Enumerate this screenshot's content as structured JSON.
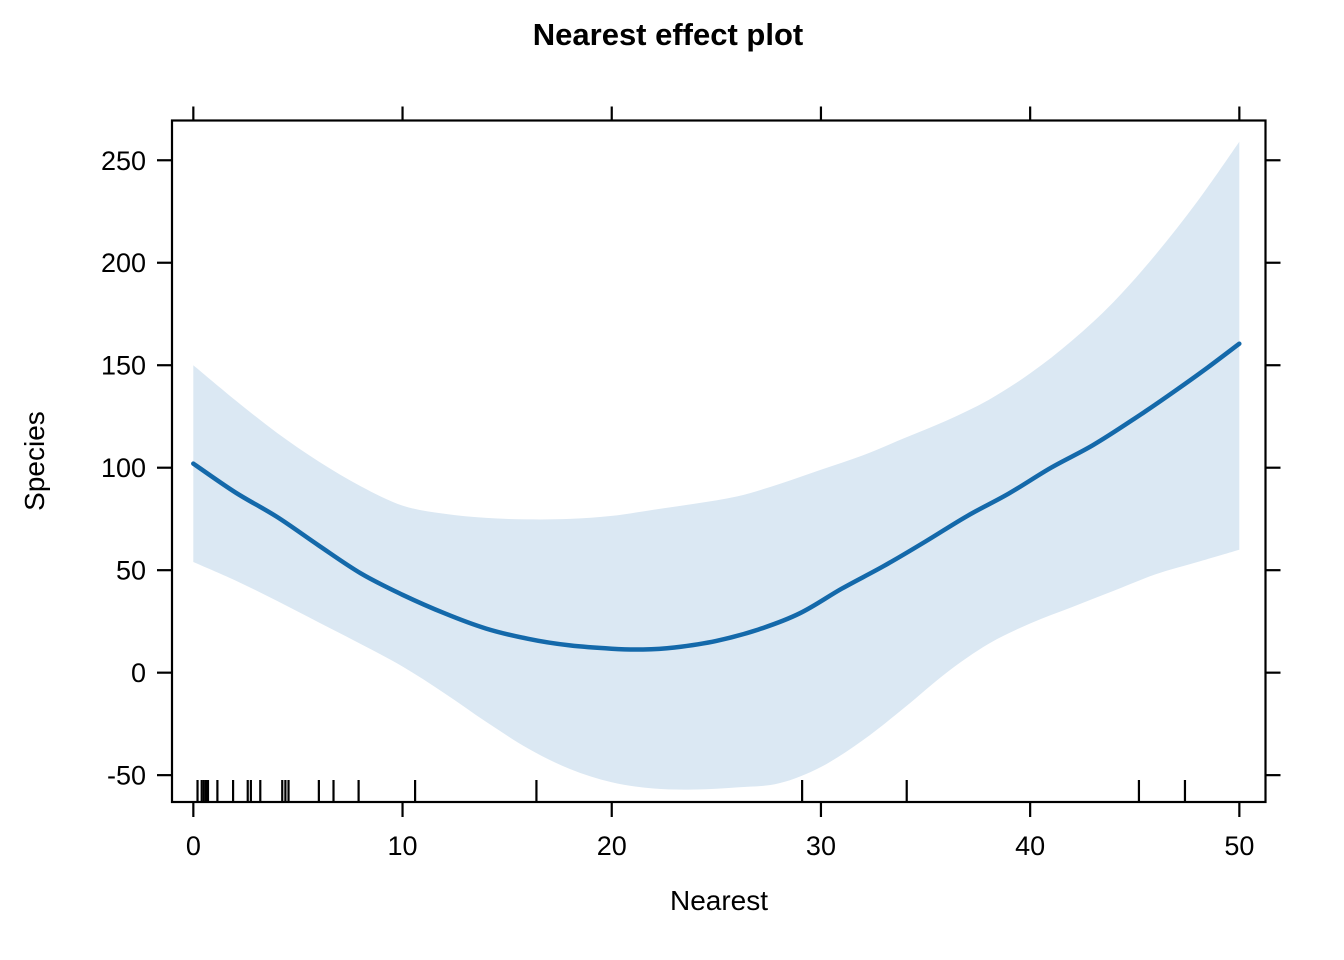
{
  "chart_data": {
    "type": "line",
    "title": "Nearest effect plot",
    "xlabel": "Nearest",
    "ylabel": "Species",
    "x_ticks": [
      0,
      10,
      20,
      30,
      40,
      50
    ],
    "y_ticks": [
      -50,
      0,
      50,
      100,
      150,
      200,
      250
    ],
    "x_range": [
      -1.02,
      51.25
    ],
    "y_range": [
      -63.1,
      269.4
    ],
    "grid": false,
    "legend": "none",
    "series": [
      {
        "name": "fitted-effect",
        "x": [
          0,
          2,
          4,
          6,
          8,
          10,
          12,
          14,
          16,
          18,
          20,
          21.5,
          23,
          25,
          27,
          29,
          31,
          33,
          35,
          37,
          39,
          41,
          43,
          45,
          47,
          48.5,
          50
        ],
        "y": [
          102,
          88,
          76,
          62,
          48.5,
          38,
          29,
          21.5,
          16.5,
          13.3,
          11.7,
          11.3,
          12.3,
          15.5,
          21,
          29,
          41,
          52,
          64,
          76.5,
          87.5,
          100,
          111,
          124,
          138,
          149,
          160.5
        ]
      },
      {
        "name": "upper-confidence-bound",
        "x": [
          0,
          2,
          4,
          6,
          8,
          10,
          12,
          14,
          16,
          18,
          20,
          22,
          24,
          26,
          28,
          30,
          32,
          34,
          36,
          38,
          40,
          42,
          44,
          46,
          48,
          50
        ],
        "y": [
          150,
          133,
          117,
          103,
          91,
          81.5,
          77.5,
          75.5,
          74.8,
          75,
          76.5,
          79.5,
          82.5,
          86,
          92,
          99,
          106,
          114.5,
          123,
          133,
          146,
          162,
          181,
          204,
          230,
          259
        ]
      },
      {
        "name": "lower-confidence-bound",
        "x": [
          0,
          2,
          4,
          6,
          8,
          10,
          12,
          14,
          16,
          18,
          20,
          22,
          24,
          26,
          28,
          30,
          32,
          34,
          36,
          38,
          40,
          42,
          44,
          46,
          48,
          50
        ],
        "y": [
          54,
          45,
          35,
          24.5,
          14,
          3,
          -10,
          -24,
          -37,
          -47,
          -53.5,
          -56.5,
          -57,
          -56,
          -54,
          -46,
          -33,
          -17,
          0,
          14,
          24,
          32,
          40,
          48,
          54,
          60
        ]
      }
    ],
    "rug_x": [
      0.2,
      0.4,
      0.5,
      0.6,
      0.7,
      1.15,
      1.9,
      2.6,
      2.75,
      3.2,
      4.25,
      4.4,
      4.55,
      6.0,
      6.7,
      7.9,
      10.6,
      16.4,
      29.1,
      34.1,
      45.2,
      47.4
    ],
    "colors": {
      "line": "#1469aa",
      "band": "#dbe8f3",
      "axis": "#000000",
      "background": "#ffffff"
    }
  }
}
